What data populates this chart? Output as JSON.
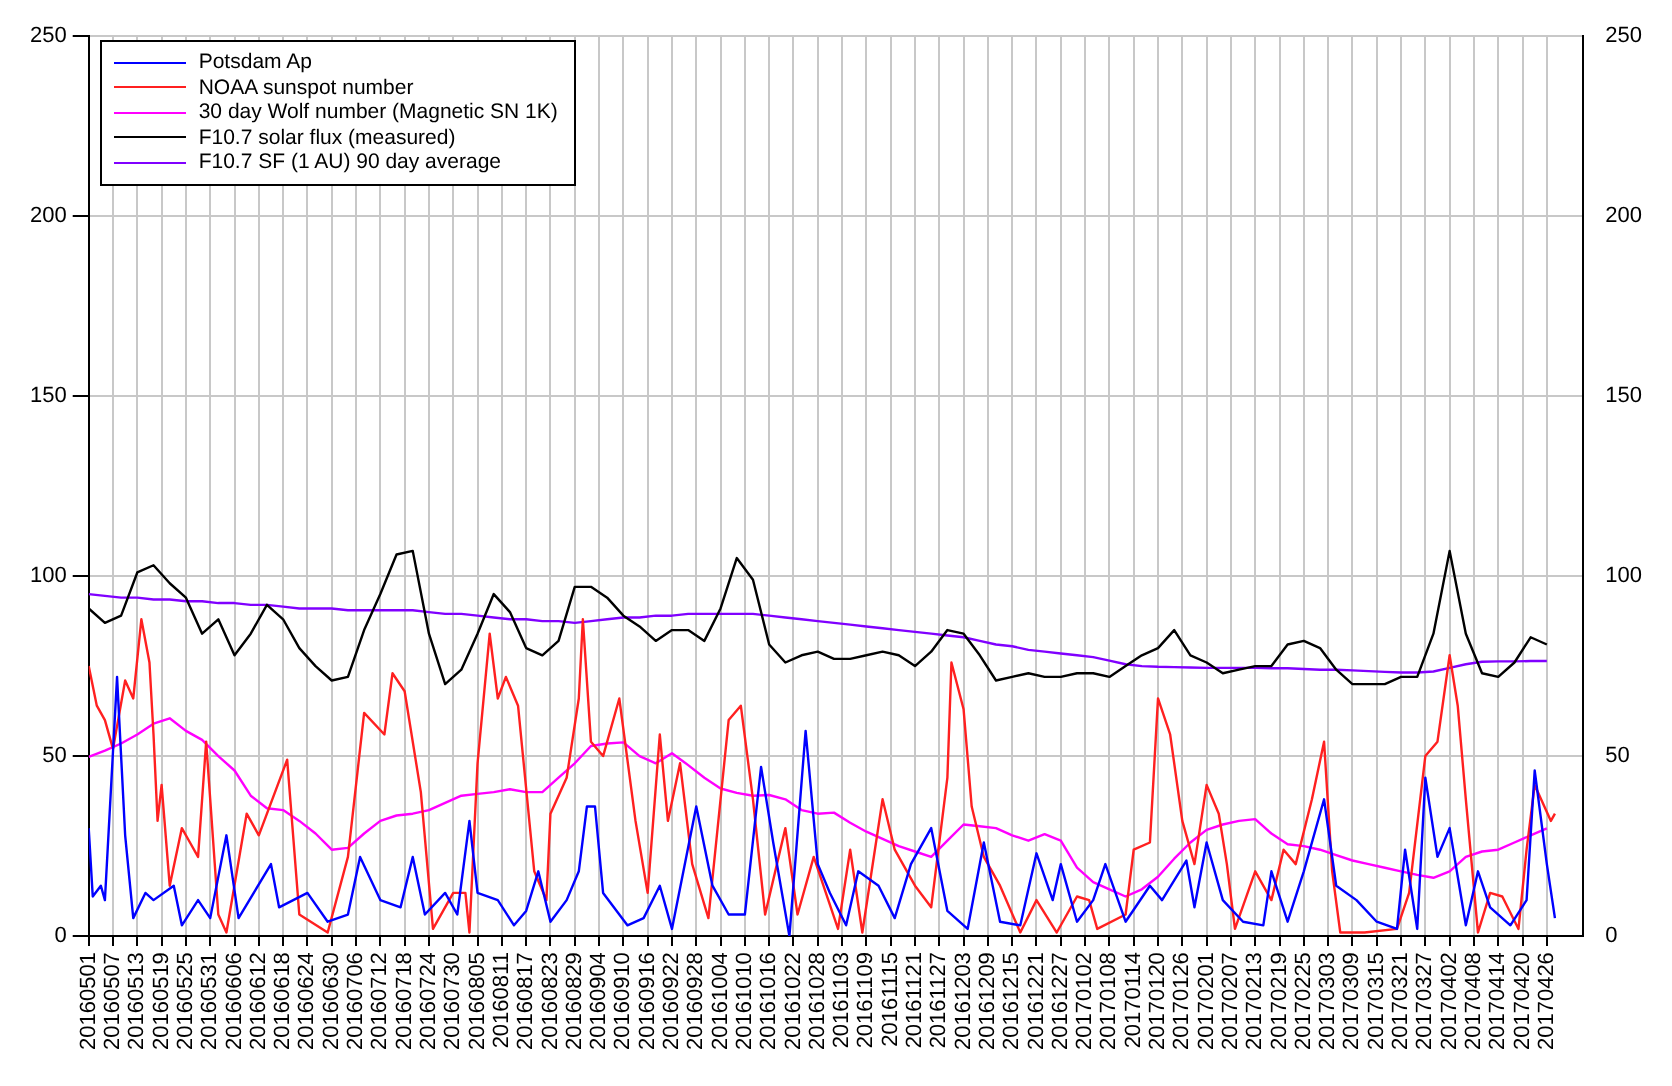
{
  "chart_data": {
    "type": "line",
    "legend": "top left",
    "grid": true,
    "marker": "none",
    "line_style": "solid",
    "x": [
      "2016-05-01",
      "2016-05-05",
      "2016-05-09",
      "2016-05-13",
      "2016-05-17",
      "2016-05-21",
      "2016-05-25",
      "2016-05-29",
      "2016-06-02",
      "2016-06-06",
      "2016-06-10",
      "2016-06-14",
      "2016-06-18",
      "2016-06-22",
      "2016-06-26",
      "2016-06-30",
      "2016-07-04",
      "2016-07-08",
      "2016-07-12",
      "2016-07-16",
      "2016-07-20",
      "2016-07-24",
      "2016-07-28",
      "2016-08-01",
      "2016-08-05",
      "2016-08-09",
      "2016-08-13",
      "2016-08-17",
      "2016-08-21",
      "2016-08-25",
      "2016-08-29",
      "2016-09-02",
      "2016-09-06",
      "2016-09-10",
      "2016-09-14",
      "2016-09-18",
      "2016-09-22",
      "2016-09-26",
      "2016-09-30",
      "2016-10-04",
      "2016-10-08",
      "2016-10-12",
      "2016-10-16",
      "2016-10-20",
      "2016-10-24",
      "2016-10-28",
      "2016-11-01",
      "2016-11-05",
      "2016-11-09",
      "2016-11-13",
      "2016-11-17",
      "2016-11-21",
      "2016-11-25",
      "2016-11-29",
      "2016-12-03",
      "2016-12-07",
      "2016-12-11",
      "2016-12-15",
      "2016-12-19",
      "2016-12-23",
      "2016-12-27",
      "2016-12-31",
      "2017-01-04",
      "2017-01-08",
      "2017-01-12",
      "2017-01-16",
      "2017-01-20",
      "2017-01-24",
      "2017-01-28",
      "2017-02-01",
      "2017-02-05",
      "2017-02-09",
      "2017-02-13",
      "2017-02-17",
      "2017-02-21",
      "2017-02-25",
      "2017-03-01",
      "2017-03-05",
      "2017-03-09",
      "2017-03-13",
      "2017-03-17",
      "2017-03-21",
      "2017-03-25",
      "2017-03-29",
      "2017-04-02",
      "2017-04-06",
      "2017-04-10",
      "2017-04-14",
      "2017-04-18",
      "2017-04-22",
      "2017-04-26"
    ],
    "xlim": [
      "2016-05-01",
      "2017-05-05"
    ],
    "xticks": [
      {
        "value": "2016-05-01",
        "label": "20160501"
      },
      {
        "value": "2016-05-07",
        "label": "20160507"
      },
      {
        "value": "2016-05-13",
        "label": "20160513"
      },
      {
        "value": "2016-05-19",
        "label": "20160519"
      },
      {
        "value": "2016-05-25",
        "label": "20160525"
      },
      {
        "value": "2016-05-31",
        "label": "20160531"
      },
      {
        "value": "2016-06-06",
        "label": "20160606"
      },
      {
        "value": "2016-06-12",
        "label": "20160612"
      },
      {
        "value": "2016-06-18",
        "label": "20160618"
      },
      {
        "value": "2016-06-24",
        "label": "20160624"
      },
      {
        "value": "2016-06-30",
        "label": "20160630"
      },
      {
        "value": "2016-07-06",
        "label": "20160706"
      },
      {
        "value": "2016-07-12",
        "label": "20160712"
      },
      {
        "value": "2016-07-18",
        "label": "20160718"
      },
      {
        "value": "2016-07-24",
        "label": "20160724"
      },
      {
        "value": "2016-07-30",
        "label": "20160730"
      },
      {
        "value": "2016-08-05",
        "label": "20160805"
      },
      {
        "value": "2016-08-11",
        "label": "20160811"
      },
      {
        "value": "2016-08-17",
        "label": "20160817"
      },
      {
        "value": "2016-08-23",
        "label": "20160823"
      },
      {
        "value": "2016-08-29",
        "label": "20160829"
      },
      {
        "value": "2016-09-04",
        "label": "20160904"
      },
      {
        "value": "2016-09-10",
        "label": "20160910"
      },
      {
        "value": "2016-09-16",
        "label": "20160916"
      },
      {
        "value": "2016-09-22",
        "label": "20160922"
      },
      {
        "value": "2016-09-28",
        "label": "20160928"
      },
      {
        "value": "2016-10-04",
        "label": "20161004"
      },
      {
        "value": "2016-10-10",
        "label": "20161010"
      },
      {
        "value": "2016-10-16",
        "label": "20161016"
      },
      {
        "value": "2016-10-22",
        "label": "20161022"
      },
      {
        "value": "2016-10-28",
        "label": "20161028"
      },
      {
        "value": "2016-11-03",
        "label": "20161103"
      },
      {
        "value": "2016-11-09",
        "label": "20161109"
      },
      {
        "value": "2016-11-15",
        "label": "20161115"
      },
      {
        "value": "2016-11-21",
        "label": "20161121"
      },
      {
        "value": "2016-11-27",
        "label": "20161127"
      },
      {
        "value": "2016-12-03",
        "label": "20161203"
      },
      {
        "value": "2016-12-09",
        "label": "20161209"
      },
      {
        "value": "2016-12-15",
        "label": "20161215"
      },
      {
        "value": "2016-12-21",
        "label": "20161221"
      },
      {
        "value": "2016-12-27",
        "label": "20161227"
      },
      {
        "value": "2017-01-02",
        "label": "20170102"
      },
      {
        "value": "2017-01-08",
        "label": "20170108"
      },
      {
        "value": "2017-01-14",
        "label": "20170114"
      },
      {
        "value": "2017-01-20",
        "label": "20170120"
      },
      {
        "value": "2017-01-26",
        "label": "20170126"
      },
      {
        "value": "2017-02-01",
        "label": "20170201"
      },
      {
        "value": "2017-02-07",
        "label": "20170207"
      },
      {
        "value": "2017-02-13",
        "label": "20170213"
      },
      {
        "value": "2017-02-19",
        "label": "20170219"
      },
      {
        "value": "2017-02-25",
        "label": "20170225"
      },
      {
        "value": "2017-03-03",
        "label": "20170303"
      },
      {
        "value": "2017-03-09",
        "label": "20170309"
      },
      {
        "value": "2017-03-15",
        "label": "20170315"
      },
      {
        "value": "2017-03-21",
        "label": "20170321"
      },
      {
        "value": "2017-03-27",
        "label": "20170327"
      },
      {
        "value": "2017-04-02",
        "label": "20170402"
      },
      {
        "value": "2017-04-08",
        "label": "20170408"
      },
      {
        "value": "2017-04-14",
        "label": "20170414"
      },
      {
        "value": "2017-04-20",
        "label": "20170420"
      },
      {
        "value": "2017-04-26",
        "label": "20170426"
      }
    ],
    "ylim": [
      0,
      250
    ],
    "yticks": [
      0,
      50,
      100,
      150,
      200,
      250
    ],
    "y2lim": [
      0,
      250
    ],
    "y2ticks": [
      0,
      50,
      100,
      150,
      200,
      250
    ],
    "series": [
      {
        "name": "Potsdam Ap",
        "color": "#0000ff",
        "x": [
          "2016-05-01",
          "2016-05-02",
          "2016-05-04",
          "2016-05-05",
          "2016-05-08",
          "2016-05-10",
          "2016-05-12",
          "2016-05-15",
          "2016-05-17",
          "2016-05-22",
          "2016-05-24",
          "2016-05-28",
          "2016-05-31",
          "2016-06-04",
          "2016-06-07",
          "2016-06-15",
          "2016-06-17",
          "2016-06-24",
          "2016-06-29",
          "2016-07-04",
          "2016-07-07",
          "2016-07-12",
          "2016-07-17",
          "2016-07-20",
          "2016-07-23",
          "2016-07-28",
          "2016-07-31",
          "2016-08-03",
          "2016-08-05",
          "2016-08-10",
          "2016-08-14",
          "2016-08-17",
          "2016-08-20",
          "2016-08-23",
          "2016-08-27",
          "2016-08-30",
          "2016-09-01",
          "2016-09-03",
          "2016-09-05",
          "2016-09-11",
          "2016-09-15",
          "2016-09-19",
          "2016-09-22",
          "2016-09-28",
          "2016-10-02",
          "2016-10-06",
          "2016-10-10",
          "2016-10-14",
          "2016-10-17",
          "2016-10-21",
          "2016-10-25",
          "2016-10-28",
          "2016-10-31",
          "2016-11-04",
          "2016-11-07",
          "2016-11-12",
          "2016-11-16",
          "2016-11-20",
          "2016-11-25",
          "2016-11-29",
          "2016-12-04",
          "2016-12-08",
          "2016-12-12",
          "2016-12-17",
          "2016-12-21",
          "2016-12-25",
          "2016-12-27",
          "2016-12-31",
          "2017-01-04",
          "2017-01-07",
          "2017-01-12",
          "2017-01-18",
          "2017-01-21",
          "2017-01-27",
          "2017-01-29",
          "2017-02-01",
          "2017-02-05",
          "2017-02-10",
          "2017-02-15",
          "2017-02-17",
          "2017-02-21",
          "2017-02-25",
          "2017-03-02",
          "2017-03-05",
          "2017-03-10",
          "2017-03-15",
          "2017-03-20",
          "2017-03-22",
          "2017-03-25",
          "2017-03-27",
          "2017-03-30",
          "2017-04-02",
          "2017-04-06",
          "2017-04-09",
          "2017-04-12",
          "2017-04-17",
          "2017-04-21",
          "2017-04-23",
          "2017-04-26",
          "2017-04-28"
        ],
        "values": [
          30,
          11,
          14,
          10,
          72,
          28,
          5,
          12,
          10,
          14,
          3,
          10,
          5,
          28,
          5,
          20,
          8,
          12,
          4,
          6,
          22,
          10,
          8,
          22,
          6,
          12,
          6,
          32,
          12,
          10,
          3,
          7,
          18,
          4,
          10,
          18,
          36,
          36,
          12,
          3,
          5,
          14,
          2,
          36,
          14,
          6,
          6,
          47,
          26,
          0,
          57,
          20,
          12,
          3,
          18,
          14,
          5,
          20,
          30,
          7,
          2,
          26,
          4,
          3,
          23,
          10,
          20,
          4,
          10,
          20,
          4,
          14,
          10,
          21,
          8,
          26,
          10,
          4,
          3,
          18,
          4,
          18,
          38,
          14,
          10,
          4,
          2,
          24,
          2,
          44,
          22,
          30,
          3,
          18,
          8,
          3,
          10,
          46,
          20,
          5
        ]
      },
      {
        "name": "NOAA sunspot number",
        "color": "#ff2020",
        "x": [
          "2016-05-01",
          "2016-05-03",
          "2016-05-05",
          "2016-05-07",
          "2016-05-10",
          "2016-05-12",
          "2016-05-14",
          "2016-05-16",
          "2016-05-17",
          "2016-05-18",
          "2016-05-19",
          "2016-05-21",
          "2016-05-24",
          "2016-05-26",
          "2016-05-28",
          "2016-05-30",
          "2016-06-02",
          "2016-06-04",
          "2016-06-09",
          "2016-06-12",
          "2016-06-19",
          "2016-06-22",
          "2016-06-29",
          "2016-07-04",
          "2016-07-08",
          "2016-07-13",
          "2016-07-15",
          "2016-07-18",
          "2016-07-22",
          "2016-07-25",
          "2016-07-30",
          "2016-08-02",
          "2016-08-03",
          "2016-08-05",
          "2016-08-08",
          "2016-08-10",
          "2016-08-12",
          "2016-08-15",
          "2016-08-19",
          "2016-08-22",
          "2016-08-23",
          "2016-08-27",
          "2016-08-30",
          "2016-08-31",
          "2016-09-02",
          "2016-09-05",
          "2016-09-09",
          "2016-09-13",
          "2016-09-16",
          "2016-09-19",
          "2016-09-21",
          "2016-09-24",
          "2016-09-27",
          "2016-10-01",
          "2016-10-06",
          "2016-10-09",
          "2016-10-12",
          "2016-10-15",
          "2016-10-20",
          "2016-10-23",
          "2016-10-27",
          "2016-11-02",
          "2016-11-05",
          "2016-11-08",
          "2016-11-13",
          "2016-11-16",
          "2016-11-21",
          "2016-11-25",
          "2016-11-29",
          "2016-11-30",
          "2016-12-03",
          "2016-12-05",
          "2016-12-08",
          "2016-12-12",
          "2016-12-17",
          "2016-12-21",
          "2016-12-26",
          "2016-12-31",
          "2017-01-03",
          "2017-01-05",
          "2017-01-12",
          "2017-01-14",
          "2017-01-18",
          "2017-01-20",
          "2017-01-23",
          "2017-01-26",
          "2017-01-29",
          "2017-02-01",
          "2017-02-04",
          "2017-02-06",
          "2017-02-08",
          "2017-02-13",
          "2017-02-17",
          "2017-02-20",
          "2017-02-23",
          "2017-02-27",
          "2017-03-02",
          "2017-03-04",
          "2017-03-06",
          "2017-03-12",
          "2017-03-20",
          "2017-03-23",
          "2017-03-27",
          "2017-03-30",
          "2017-04-02",
          "2017-04-04",
          "2017-04-06",
          "2017-04-09",
          "2017-04-12",
          "2017-04-15",
          "2017-04-19",
          "2017-04-21",
          "2017-04-23",
          "2017-04-27",
          "2017-04-28"
        ],
        "values": [
          75,
          64,
          60,
          52,
          71,
          66,
          88,
          76,
          56,
          32,
          42,
          14,
          30,
          26,
          22,
          54,
          6,
          1,
          34,
          28,
          49,
          6,
          1,
          22,
          62,
          56,
          73,
          68,
          40,
          2,
          12,
          12,
          1,
          48,
          84,
          66,
          72,
          64,
          18,
          10,
          34,
          44,
          66,
          88,
          54,
          50,
          66,
          32,
          12,
          56,
          32,
          48,
          20,
          5,
          60,
          64,
          38,
          6,
          30,
          6,
          22,
          2,
          24,
          1,
          38,
          24,
          14,
          8,
          44,
          76,
          63,
          36,
          22,
          14,
          1,
          10,
          1,
          11,
          10,
          2,
          6,
          24,
          26,
          66,
          56,
          32,
          20,
          42,
          34,
          20,
          2,
          18,
          10,
          24,
          20,
          38,
          54,
          18,
          1,
          1,
          2,
          12,
          50,
          54,
          78,
          64,
          38,
          1,
          12,
          11,
          2,
          24,
          42,
          32,
          34
        ]
      },
      {
        "name": "30 day Wolf number (Magnetic SN 1K)",
        "color": "#ff00ff",
        "values": [
          49.8,
          51.5,
          53.5,
          56,
          59,
          60.5,
          57,
          54.5,
          50,
          46,
          39,
          35.5,
          35,
          32,
          28.5,
          24,
          24.5,
          28.5,
          32,
          33.5,
          34,
          35,
          37,
          39,
          39.5,
          40,
          40.8,
          40,
          40,
          44,
          48,
          52.8,
          53.5,
          53.8,
          50,
          48,
          50.8,
          47.5,
          44,
          41,
          39.8,
          39,
          39.2,
          38,
          35,
          34,
          34.3,
          31.5,
          29,
          27,
          25,
          23.5,
          22,
          26.5,
          31,
          30.5,
          30,
          28,
          26.5,
          28.3,
          26.5,
          19,
          15,
          13,
          11,
          13,
          16.5,
          21.5,
          26,
          29.5,
          31,
          32,
          32.5,
          28.5,
          25.5,
          25,
          24,
          22.5,
          21,
          20,
          19,
          18,
          17,
          16.2,
          18,
          22,
          23.5,
          24,
          26,
          28,
          29.9
        ]
      },
      {
        "name": "F10.7 solar flux (measured)",
        "color": "#000000",
        "values": [
          91,
          87,
          89,
          101,
          103,
          98,
          94,
          84,
          88,
          78,
          84,
          92,
          88,
          80,
          75,
          71,
          72,
          85,
          95,
          106,
          107,
          84,
          70,
          74,
          84,
          95,
          90,
          80,
          78,
          82,
          97,
          97,
          94,
          89,
          86,
          82,
          85,
          85,
          82,
          91,
          105,
          99,
          81,
          76,
          78,
          79,
          77,
          77,
          78,
          79,
          78,
          75,
          79,
          85,
          84,
          78,
          71,
          72,
          73,
          72,
          72,
          73,
          73,
          72,
          75,
          78,
          80,
          85,
          78,
          76,
          73,
          74,
          75,
          75,
          81,
          82,
          80,
          74,
          70,
          70,
          70,
          72,
          72,
          84,
          107,
          84,
          73,
          72,
          76,
          83,
          81
        ]
      },
      {
        "name": "F10.7 SF (1 AU) 90 day average",
        "color": "#8000ff",
        "values": [
          95,
          94.5,
          94,
          94,
          93.5,
          93.5,
          93,
          93,
          92.5,
          92.5,
          92,
          92,
          91.5,
          91,
          91,
          91,
          90.5,
          90.5,
          90.5,
          90.5,
          90.5,
          90,
          89.5,
          89.5,
          89,
          88.5,
          88,
          88,
          87.5,
          87.5,
          87,
          87.5,
          88,
          88.5,
          88.5,
          89,
          89,
          89.5,
          89.5,
          89.5,
          89.5,
          89.5,
          89,
          88.5,
          88,
          87.5,
          87,
          86.5,
          86,
          85.5,
          85,
          84.5,
          84,
          83.5,
          83,
          82,
          81,
          80.5,
          79.5,
          79,
          78.5,
          78,
          77.5,
          76.5,
          75.5,
          75,
          74.8,
          74.7,
          74.6,
          74.5,
          74.5,
          74.5,
          74.5,
          74.4,
          74.4,
          74.2,
          74,
          74,
          73.8,
          73.6,
          73.4,
          73.2,
          73.2,
          73.5,
          74.5,
          75.5,
          76.2,
          76.3,
          76.3,
          76.4,
          76.4
        ]
      }
    ]
  }
}
